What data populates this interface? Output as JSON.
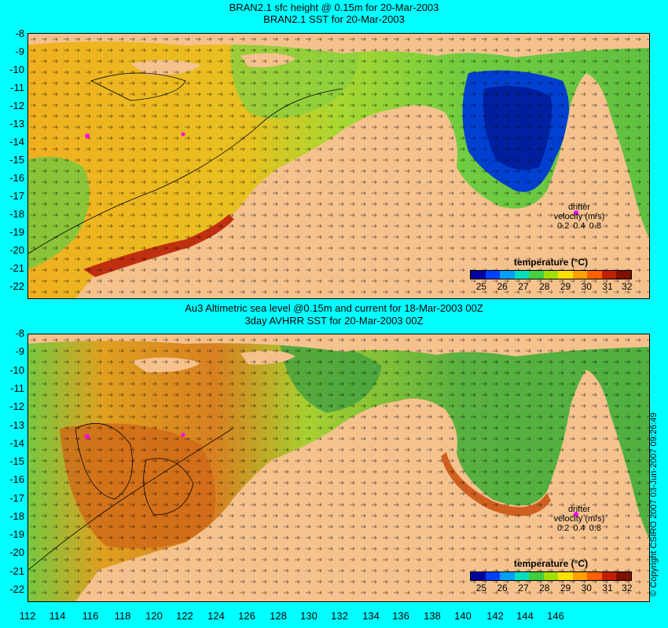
{
  "panels": [
    {
      "id": "top",
      "title_line1": "BRAN2.1 sfc height @ 0.15m for 20-Mar-2003",
      "title_line2": "BRAN2.1 SST for 20-Mar-2003"
    },
    {
      "id": "bottom",
      "title_line1": "Au3 Altimetric sea level  @0.15m and current for 18-Mar-2003 00Z",
      "title_line2": "3day AVHRR SST for 20-Mar-2003 00Z"
    }
  ],
  "axes": {
    "latitude_ticks": [
      "-8",
      "-9",
      "-10",
      "-11",
      "-12",
      "-13",
      "-14",
      "-15",
      "-16",
      "-17",
      "-18",
      "-19",
      "-20",
      "-21",
      "-22"
    ],
    "longitude_ticks": [
      "112",
      "114",
      "116",
      "118",
      "120",
      "122",
      "124",
      "126",
      "128",
      "130",
      "132",
      "134",
      "136",
      "138",
      "140",
      "142",
      "144",
      "146"
    ]
  },
  "legend": {
    "title": "temperature (°C)",
    "ticks": [
      "25",
      "26",
      "27",
      "28",
      "29",
      "30",
      "31",
      "32"
    ],
    "colors": [
      "#0000a0",
      "#0040ff",
      "#00a0ff",
      "#00e0c0",
      "#40d040",
      "#a0e000",
      "#ffe000",
      "#ffa000",
      "#ff6000",
      "#c02000",
      "#801000"
    ]
  },
  "drifter": {
    "title": "drifter",
    "label": "velocity (m/s)",
    "scale": [
      "0.2",
      "0.4",
      "0.8"
    ]
  },
  "copyright": "© Copyright CSIRO 2007   03-Jun-2007 09:26:49",
  "colors": {
    "land": "#f5c28e",
    "background": "#00ffff",
    "warm_sea": "#f0b020",
    "cool_sea": "#60c840",
    "hot_coast": "#c03010",
    "cold_gulf": "#0030c0",
    "drifter": "#ff00ff"
  }
}
